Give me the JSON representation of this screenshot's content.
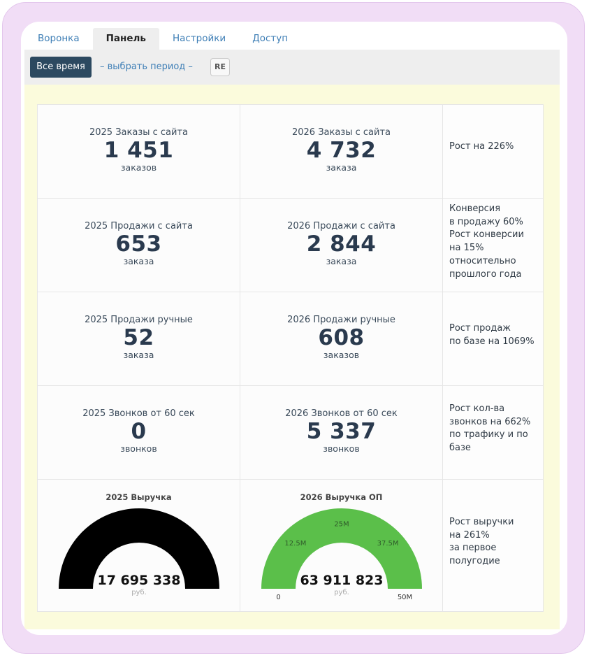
{
  "tabs": [
    "Воронка",
    "Панель",
    "Настройки",
    "Доступ"
  ],
  "active_tab": 1,
  "toolbar": {
    "all_time": "Все время",
    "period_link": "– выбрать период –",
    "re": "RE"
  },
  "rows": [
    {
      "left": {
        "label": "2025 Заказы с сайта",
        "value": "1 451",
        "unit": "заказов"
      },
      "right": {
        "label": "2026 Заказы с сайта",
        "value": "4 732",
        "unit": "заказа"
      },
      "note": [
        "Рост на 226%"
      ]
    },
    {
      "left": {
        "label": "2025 Продажи с сайта",
        "value": "653",
        "unit": "заказа"
      },
      "right": {
        "label": "2026 Продажи с сайта",
        "value": "2 844",
        "unit": "заказа"
      },
      "note": [
        "Конверсия",
        "в продажу 60%",
        "Рост конверсии",
        "на 15%",
        "относительно",
        "прошлого года"
      ]
    },
    {
      "left": {
        "label": "2025 Продажи ручные",
        "value": "52",
        "unit": "заказа"
      },
      "right": {
        "label": "2026 Продажи ручные",
        "value": "608",
        "unit": "заказов"
      },
      "note": [
        "Рост продаж",
        "по базе на 1069%"
      ]
    },
    {
      "left": {
        "label": "2025 Звонков от 60 сек",
        "value": "0",
        "unit": "звонков"
      },
      "right": {
        "label": "2026 Звонков от 60 сек",
        "value": "5 337",
        "unit": "звонков"
      },
      "note": [
        "Рост кол-ва",
        "звонков на 662%",
        "по трафику и по",
        "базе"
      ]
    }
  ],
  "gauges": {
    "left": {
      "title": "2025 Выручка",
      "value": "17 695 338",
      "unit": "руб.",
      "color": "#000000",
      "fill_fraction": 1.0,
      "ticks": []
    },
    "right": {
      "title": "2026 Выручка ОП",
      "value": "63 911 823",
      "unit": "руб.",
      "color": "#5bbf4a",
      "fill_fraction": 1.0,
      "ticks": [
        "0",
        "12.5M",
        "25M",
        "37.5M",
        "50M"
      ]
    },
    "note": [
      "Рост выручки",
      "на 261%",
      "за первое",
      "полугодие"
    ]
  }
}
